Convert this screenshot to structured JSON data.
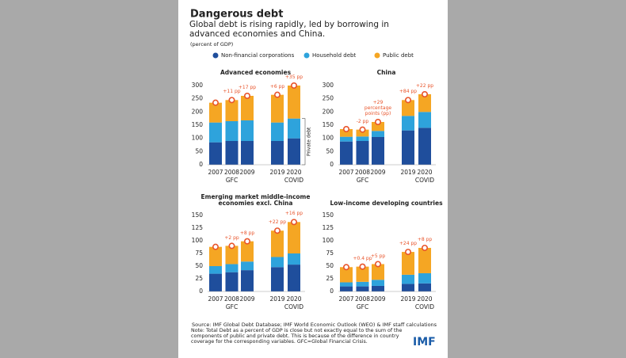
{
  "title": "Dangerous debt",
  "subtitle": "Global debt is rising rapidly, led by borrowing in advanced economies and China.",
  "unit": "(percent of GDP)",
  "source": "Source: IMF Global Debt Database; IMF World Economic Outlook (WEO) & IMF staff calculations",
  "note": "Note: Total Debt as a percent of GDP is close but not exactly equal to the sum of the components of public and private debt. This is because of the difference in country coverage for the corresponding variables. GFC=Global Financial Crisis.",
  "logo": "IMF",
  "chart_data": [
    {
      "type": "bar",
      "stacked": true,
      "title": "Advanced economies",
      "categories": [
        "2007",
        "2008",
        "2009",
        "2019",
        "2020"
      ],
      "group_labels": [
        null,
        "GFC",
        null,
        null,
        "COVID"
      ],
      "series": [
        {
          "name": "Non-financial corporations",
          "color": "#1f4e9c",
          "values": [
            85,
            90,
            90,
            90,
            100
          ]
        },
        {
          "name": "Household debt",
          "color": "#2ea3dc",
          "values": [
            75,
            75,
            78,
            70,
            75
          ]
        },
        {
          "name": "Public debt",
          "color": "#f5a623",
          "values": [
            75,
            80,
            93,
            105,
            125
          ]
        }
      ],
      "annotations": [
        {
          "category": "2008",
          "text": "+11 pp"
        },
        {
          "category": "2009",
          "text": "+17 pp"
        },
        {
          "category": "2019",
          "text": "+6 pp"
        },
        {
          "category": "2020",
          "text": "+35 pp"
        }
      ],
      "side_label": "Private debt",
      "ylim": [
        0,
        300
      ],
      "yticks": [
        0,
        50,
        100,
        150,
        200,
        250,
        300
      ]
    },
    {
      "type": "bar",
      "stacked": true,
      "title": "China",
      "categories": [
        "2007",
        "2008",
        "2009",
        "2019",
        "2020"
      ],
      "group_labels": [
        null,
        "GFC",
        null,
        null,
        "COVID"
      ],
      "series": [
        {
          "name": "Non-financial corporations",
          "color": "#1f4e9c",
          "values": [
            88,
            90,
            105,
            130,
            140
          ]
        },
        {
          "name": "Household debt",
          "color": "#2ea3dc",
          "values": [
            18,
            17,
            23,
            55,
            60
          ]
        },
        {
          "name": "Public debt",
          "color": "#f5a623",
          "values": [
            29,
            26,
            34,
            60,
            67
          ]
        }
      ],
      "annotations": [
        {
          "category": "2008",
          "text": "-2 pp"
        },
        {
          "category": "2009",
          "text": "+29 percentage points (pp)"
        },
        {
          "category": "2019",
          "text": "+84 pp"
        },
        {
          "category": "2020",
          "text": "+22 pp"
        }
      ],
      "ylim": [
        0,
        300
      ],
      "yticks": [
        0,
        50,
        100,
        150,
        200,
        250,
        300
      ]
    },
    {
      "type": "bar",
      "stacked": true,
      "title": "Emerging market middle-income economies excl. China",
      "categories": [
        "2007",
        "2008",
        "2009",
        "2019",
        "2020"
      ],
      "group_labels": [
        null,
        "GFC",
        null,
        null,
        "COVID"
      ],
      "series": [
        {
          "name": "Non-financial corporations",
          "color": "#1f4e9c",
          "values": [
            35,
            38,
            42,
            48,
            53
          ]
        },
        {
          "name": "Household debt",
          "color": "#2ea3dc",
          "values": [
            15,
            16,
            17,
            20,
            22
          ]
        },
        {
          "name": "Public debt",
          "color": "#f5a623",
          "values": [
            38,
            36,
            40,
            52,
            62
          ]
        }
      ],
      "annotations": [
        {
          "category": "2008",
          "text": "+2 pp"
        },
        {
          "category": "2009",
          "text": "+8 pp"
        },
        {
          "category": "2019",
          "text": "+22 pp"
        },
        {
          "category": "2020",
          "text": "+16 pp"
        }
      ],
      "ylim": [
        0,
        150
      ],
      "yticks": [
        0,
        25,
        50,
        75,
        100,
        125,
        150
      ]
    },
    {
      "type": "bar",
      "stacked": true,
      "title": "Low-income developing countries",
      "categories": [
        "2007",
        "2008",
        "2009",
        "2019",
        "2020"
      ],
      "group_labels": [
        null,
        "GFC",
        null,
        null,
        "COVID"
      ],
      "series": [
        {
          "name": "Non-financial corporations",
          "color": "#1f4e9c",
          "values": [
            10,
            10,
            11,
            15,
            16
          ]
        },
        {
          "name": "Household debt",
          "color": "#2ea3dc",
          "values": [
            8,
            9,
            12,
            18,
            20
          ]
        },
        {
          "name": "Public debt",
          "color": "#f5a623",
          "values": [
            30,
            30,
            31,
            45,
            50
          ]
        }
      ],
      "annotations": [
        {
          "category": "2008",
          "text": "+0.4 pp"
        },
        {
          "category": "2009",
          "text": "+5 pp"
        },
        {
          "category": "2019",
          "text": "+24 pp"
        },
        {
          "category": "2020",
          "text": "+8 pp"
        }
      ],
      "ylim": [
        0,
        150
      ],
      "yticks": [
        0,
        25,
        50,
        75,
        100,
        125,
        150
      ]
    }
  ]
}
